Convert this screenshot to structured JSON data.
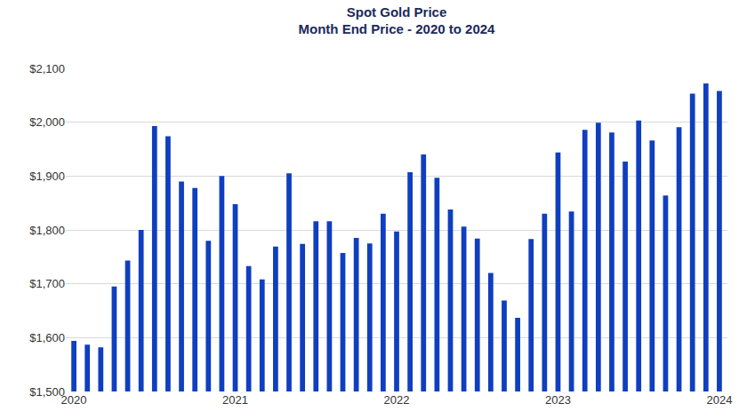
{
  "chart_data": {
    "type": "bar",
    "title": "Spot Gold Price",
    "subtitle": "Month End Price - 2020 to 2024",
    "categories": [
      "2020",
      null,
      null,
      null,
      null,
      null,
      null,
      null,
      null,
      null,
      null,
      null,
      "2021",
      null,
      null,
      null,
      null,
      null,
      null,
      null,
      null,
      null,
      null,
      null,
      "2022",
      null,
      null,
      null,
      null,
      null,
      null,
      null,
      null,
      null,
      null,
      null,
      "2023",
      null,
      null,
      null,
      null,
      null,
      null,
      null,
      null,
      null,
      null,
      null,
      "2024"
    ],
    "values": [
      1594,
      1587,
      1582,
      1695,
      1743,
      1800,
      1993,
      1974,
      1890,
      1878,
      1780,
      1900,
      1848,
      1733,
      1708,
      1769,
      1905,
      1774,
      1816,
      1816,
      1757,
      1785,
      1775,
      1830,
      1797,
      1907,
      1940,
      1897,
      1838,
      1806,
      1784,
      1720,
      1669,
      1637,
      1783,
      1830,
      1944,
      1834,
      1986,
      1999,
      1981,
      1927,
      2003,
      1966,
      1864,
      1991,
      2053,
      2072,
      2058
    ],
    "color": "#0f3fc0",
    "ylim": [
      1500,
      2100
    ],
    "yticks": [
      {
        "value": 1500,
        "label": "$1,500"
      },
      {
        "value": 1600,
        "label": "$1,600"
      },
      {
        "value": 1700,
        "label": "$1,700"
      },
      {
        "value": 1800,
        "label": "$1,800"
      },
      {
        "value": 1900,
        "label": "$1,900"
      },
      {
        "value": 2000,
        "label": "$2,000"
      },
      {
        "value": 2100,
        "label": "$2,100"
      }
    ],
    "grid": true
  }
}
